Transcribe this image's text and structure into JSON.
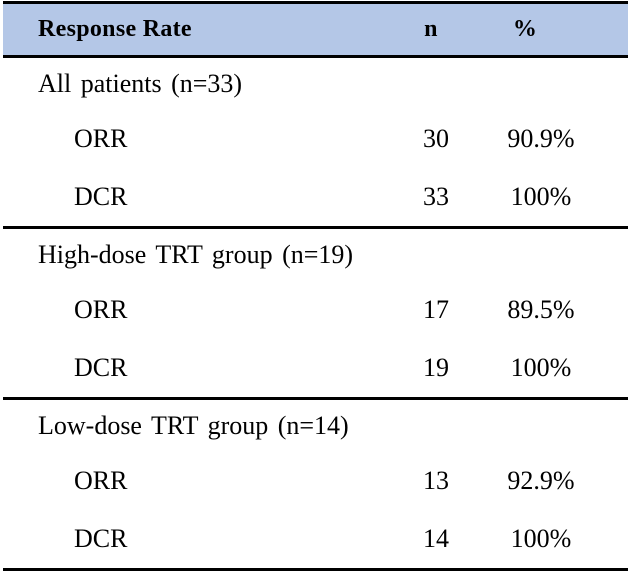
{
  "table": {
    "header": {
      "label": "Response Rate",
      "n": "n",
      "pct": "%"
    },
    "groups": [
      {
        "label": "All patients (n=33)",
        "rows": [
          {
            "metric": "ORR",
            "n": "30",
            "pct": "90.9%"
          },
          {
            "metric": "DCR",
            "n": "33",
            "pct": "100%"
          }
        ]
      },
      {
        "label": "High-dose TRT group (n=19)",
        "rows": [
          {
            "metric": "ORR",
            "n": "17",
            "pct": "89.5%"
          },
          {
            "metric": "DCR",
            "n": "19",
            "pct": "100%"
          }
        ]
      },
      {
        "label": "Low-dose TRT group (n=14)",
        "rows": [
          {
            "metric": "ORR",
            "n": "13",
            "pct": "92.9%"
          },
          {
            "metric": "DCR",
            "n": "14",
            "pct": "100%"
          }
        ]
      }
    ]
  },
  "colors": {
    "header_background": "#b4c7e7",
    "border": "#000000",
    "text": "#000000",
    "page_background": "#ffffff"
  },
  "chart_data": {
    "type": "table",
    "columns": [
      "Response Rate",
      "n",
      "%"
    ],
    "rows": [
      [
        "All patients (n=33)",
        "",
        ""
      ],
      [
        "ORR",
        "30",
        "90.9%"
      ],
      [
        "DCR",
        "33",
        "100%"
      ],
      [
        "High-dose TRT group (n=19)",
        "",
        ""
      ],
      [
        "ORR",
        "17",
        "89.5%"
      ],
      [
        "DCR",
        "19",
        "100%"
      ],
      [
        "Low-dose TRT group (n=14)",
        "",
        ""
      ],
      [
        "ORR",
        "13",
        "92.9%"
      ],
      [
        "DCR",
        "14",
        "100%"
      ]
    ]
  }
}
